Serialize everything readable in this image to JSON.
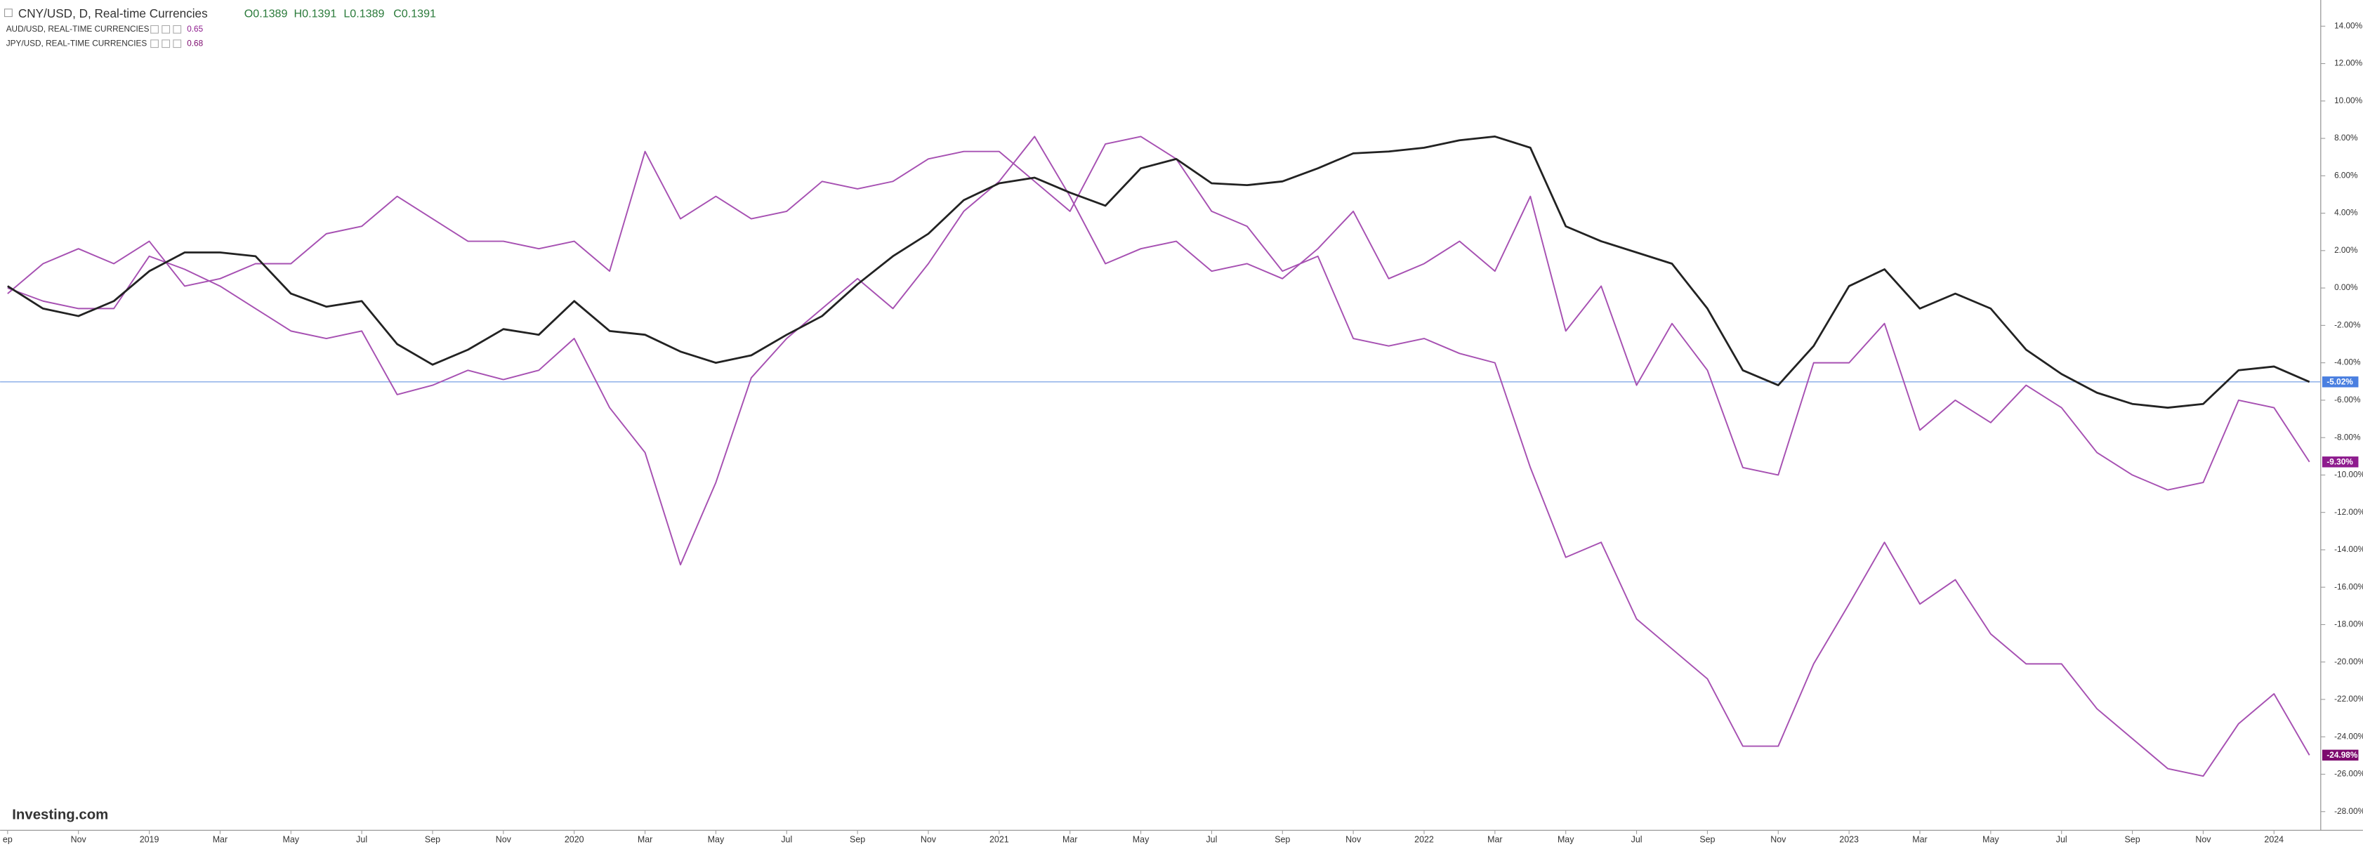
{
  "chart_data": {
    "type": "line",
    "title": "CNY/USD, D, Real-time Currencies",
    "ohlc": [
      "O0.1389",
      "H0.1391",
      "L0.1389",
      "C0.1391"
    ],
    "watermark": "Investing.com",
    "categories": [
      "ep",
      null,
      "Nov",
      null,
      "2019",
      null,
      "Mar",
      null,
      "May",
      null,
      "Jul",
      null,
      "Sep",
      null,
      "Nov",
      null,
      "2020",
      null,
      "Mar",
      null,
      "May",
      null,
      "Jul",
      null,
      "Sep",
      null,
      "Nov",
      null,
      "2021",
      null,
      "Mar",
      null,
      "May",
      null,
      "Jul",
      null,
      "Sep",
      null,
      "Nov",
      null,
      "2022",
      null,
      "Mar",
      null,
      "May",
      null,
      "Jul",
      null,
      "Sep",
      null,
      "Nov",
      null,
      "2023",
      null,
      "Mar",
      null,
      "May",
      null,
      "Jul",
      null,
      "Sep",
      null,
      "Nov",
      null,
      "2024",
      null
    ],
    "series": [
      {
        "name": "CNY/USD, D, Real-time Currencies",
        "color": "#222222",
        "label_color": "#4a7fe0",
        "last_label": "-5.02%",
        "values": [
          0.1,
          -1.1,
          -1.5,
          -0.7,
          0.9,
          1.9,
          1.9,
          1.7,
          -0.3,
          -1.0,
          -0.7,
          -3.0,
          -4.1,
          -3.3,
          -2.2,
          -2.5,
          -0.7,
          -2.3,
          -2.5,
          -3.4,
          -4.0,
          -3.6,
          -2.5,
          -1.5,
          0.2,
          1.7,
          2.9,
          4.7,
          5.6,
          5.9,
          5.1,
          4.4,
          6.4,
          6.9,
          5.6,
          5.5,
          5.7,
          6.4,
          7.2,
          7.3,
          7.5,
          7.9,
          8.1,
          7.5,
          3.3,
          2.5,
          1.9,
          1.3,
          -1.1,
          -4.4,
          -5.2,
          -3.1,
          0.1,
          1.0,
          -1.1,
          -0.3,
          -1.1,
          -3.3,
          -4.6,
          -5.6,
          -6.2,
          -6.4,
          -6.2,
          -4.4,
          -4.2,
          -5.02
        ]
      },
      {
        "name": "AUD/USD, REAL-TIME CURRENCIES",
        "price": "0.65",
        "color": "#a650b2",
        "label_color": "#8e1c8e",
        "last_label": "-9.30%",
        "values": [
          0,
          -0.7,
          -1.1,
          -1.1,
          1.7,
          1.0,
          0.1,
          -1.1,
          -2.3,
          -2.7,
          -2.3,
          -5.7,
          -5.2,
          -4.4,
          -4.9,
          -4.4,
          -2.7,
          -6.4,
          -8.8,
          -14.8,
          -10.4,
          -4.8,
          -2.7,
          -1.1,
          0.5,
          -1.1,
          1.3,
          4.1,
          5.7,
          8.1,
          4.9,
          1.3,
          2.1,
          2.5,
          0.9,
          1.3,
          0.5,
          2.1,
          4.1,
          0.5,
          1.3,
          2.5,
          0.9,
          4.9,
          -2.3,
          0.1,
          -5.2,
          -1.9,
          -4.4,
          -9.6,
          -10.0,
          -4.0,
          -4.0,
          -1.9,
          -7.6,
          -6.0,
          -7.2,
          -5.2,
          -6.4,
          -8.8,
          -10.0,
          -10.8,
          -10.4,
          -6.0,
          -6.4,
          -9.3
        ]
      },
      {
        "name": "JPY/USD, REAL-TIME CURRENCIES",
        "price": "0.68",
        "color": "#a650b2",
        "label_color": "#7d0a6e",
        "last_label": "-24.98%",
        "values": [
          -0.3,
          1.3,
          2.1,
          1.3,
          2.5,
          0.1,
          0.5,
          1.3,
          1.3,
          2.9,
          3.3,
          4.9,
          3.7,
          2.5,
          2.5,
          2.1,
          2.5,
          0.9,
          7.3,
          3.7,
          4.9,
          3.7,
          4.1,
          5.7,
          5.3,
          5.7,
          6.9,
          7.3,
          7.3,
          5.7,
          4.1,
          7.7,
          8.1,
          6.9,
          4.1,
          3.3,
          0.9,
          1.7,
          -2.7,
          -3.1,
          -2.7,
          -3.5,
          -4.0,
          -9.6,
          -14.4,
          -13.6,
          -17.7,
          -19.3,
          -20.9,
          -24.5,
          -24.5,
          -20.1,
          -16.9,
          -13.6,
          -16.9,
          -15.6,
          -18.5,
          -20.1,
          -20.1,
          -22.5,
          -24.1,
          -25.7,
          -26.1,
          -23.3,
          -21.7,
          -24.98
        ]
      }
    ],
    "ylim": [
      -29,
      15.4
    ],
    "yticks": [
      {
        "value": 14,
        "label": "14.00%"
      },
      {
        "value": 12,
        "label": "12.00%"
      },
      {
        "value": 10,
        "label": "10.00%"
      },
      {
        "value": 8,
        "label": "8.00%"
      },
      {
        "value": 6,
        "label": "6.00%"
      },
      {
        "value": 4,
        "label": "4.00%"
      },
      {
        "value": 2,
        "label": "2.00%"
      },
      {
        "value": 0,
        "label": "0.00%"
      },
      {
        "value": -2,
        "label": "-2.00%"
      },
      {
        "value": -4,
        "label": "-4.00%"
      },
      {
        "value": -6,
        "label": "-6.00%"
      },
      {
        "value": -8,
        "label": "-8.00%"
      },
      {
        "value": -10,
        "label": "-10.00%"
      },
      {
        "value": -12,
        "label": "-12.00%"
      },
      {
        "value": -14,
        "label": "-14.00%"
      },
      {
        "value": -16,
        "label": "-16.00%"
      },
      {
        "value": -18,
        "label": "-18.00%"
      },
      {
        "value": -20,
        "label": "-20.00%"
      },
      {
        "value": -22,
        "label": "-22.00%"
      },
      {
        "value": -24,
        "label": "-24.00%"
      },
      {
        "value": -26,
        "label": "-26.00%"
      },
      {
        "value": -28,
        "label": "-28.00%"
      }
    ],
    "price_line_color": "#8fb0e8"
  }
}
